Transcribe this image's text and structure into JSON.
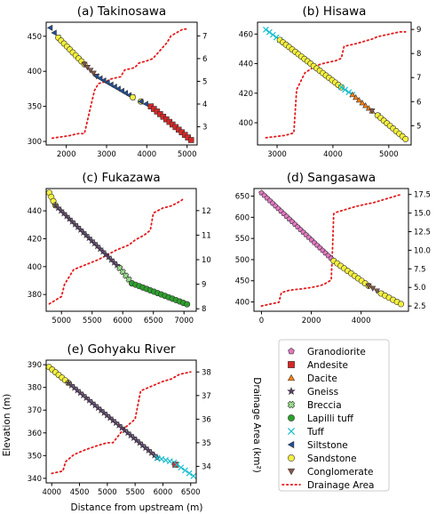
{
  "colors": {
    "Granodiorite": "#e377c2",
    "Andesite": "#d62728",
    "Dacite": "#ff7f0e",
    "Gneiss": "#5e3e6e",
    "Breccia": "#98df8a",
    "Lapilli tuff": "#2ca02c",
    "Tuff": "#17becf",
    "Siltstone": "#1f4e99",
    "Sandstone": "#f5f03c",
    "Conglomerate": "#8c564b",
    "Drainage Area": "#e41a1c"
  },
  "markers": {
    "Granodiorite": "pentagon",
    "Andesite": "square",
    "Dacite": "triangle-up",
    "Gneiss": "star",
    "Breccia": "x-filled",
    "Lapilli tuff": "circle",
    "Tuff": "x-thin",
    "Siltstone": "triangle-left",
    "Sandstone": "circle",
    "Conglomerate": "triangle-down",
    "Drainage Area": "dotted-line"
  },
  "legend": {
    "placement": "bottom-right",
    "items": [
      "Granodiorite",
      "Andesite",
      "Dacite",
      "Gneiss",
      "Breccia",
      "Lapilli tuff",
      "Tuff",
      "Siltstone",
      "Sandstone",
      "Conglomerate",
      "Drainage Area"
    ]
  },
  "axis_labels": {
    "x": "Distance from upstream (m)",
    "y": "Elevation (m)",
    "y2": "Drainage Area (km²)"
  },
  "chart_data": [
    {
      "type": "scatter",
      "title": "(a) Takinosawa",
      "xlim": [
        1500,
        5250
      ],
      "ylim": [
        295,
        470
      ],
      "y2lim": [
        2.2,
        7.6
      ],
      "xticks": [
        2000,
        3000,
        4000,
        5000
      ],
      "yticks": [
        300,
        350,
        400,
        450
      ],
      "y2ticks": [
        3,
        4,
        5,
        6,
        7
      ],
      "segments": [
        {
          "lith": "Siltstone",
          "x": [
            1600,
            1800
          ],
          "y": [
            462,
            448
          ]
        },
        {
          "lith": "Sandstone",
          "x": [
            1800,
            2450
          ],
          "y": [
            448,
            410
          ]
        },
        {
          "lith": "Conglomerate",
          "x": [
            2450,
            2750
          ],
          "y": [
            410,
            393
          ]
        },
        {
          "lith": "Siltstone",
          "x": [
            2750,
            3650
          ],
          "y": [
            393,
            363
          ]
        },
        {
          "lith": "Sandstone",
          "x": [
            3650,
            3850
          ],
          "y": [
            363,
            357
          ]
        },
        {
          "lith": "Siltstone",
          "x": [
            3850,
            4100
          ],
          "y": [
            357,
            350
          ]
        },
        {
          "lith": "Andesite",
          "x": [
            4100,
            5100
          ],
          "y": [
            350,
            302
          ]
        }
      ],
      "drainage": {
        "x": [
          1650,
          2050,
          2300,
          2450,
          2700,
          2800,
          3000,
          3100,
          3350,
          3450,
          3700,
          3800,
          4000,
          4150,
          4250,
          4400,
          4500,
          4600,
          4700,
          4900,
          5000
        ],
        "y2": [
          2.5,
          2.6,
          2.7,
          2.7,
          4.6,
          4.9,
          5.0,
          5.1,
          5.2,
          5.5,
          5.6,
          5.8,
          5.9,
          6.0,
          6.2,
          6.5,
          6.7,
          7.0,
          7.1,
          7.3,
          7.3
        ]
      }
    },
    {
      "type": "scatter",
      "title": "(b) Hisawa",
      "xlim": [
        2650,
        5400
      ],
      "ylim": [
        385,
        468
      ],
      "y2lim": [
        4.2,
        9.3
      ],
      "xticks": [
        3000,
        4000,
        5000
      ],
      "yticks": [
        400,
        420,
        440,
        460
      ],
      "y2ticks": [
        5,
        6,
        7,
        8,
        9
      ],
      "segments": [
        {
          "lith": "Tuff",
          "x": [
            2800,
            3050
          ],
          "y": [
            463,
            456
          ]
        },
        {
          "lith": "Sandstone",
          "x": [
            3050,
            4150
          ],
          "y": [
            456,
            424
          ]
        },
        {
          "lith": "Tuff",
          "x": [
            4150,
            4350
          ],
          "y": [
            424,
            419
          ]
        },
        {
          "lith": "Dacite",
          "x": [
            4350,
            4700
          ],
          "y": [
            419,
            408
          ]
        },
        {
          "lith": "Conglomerate",
          "x": [
            4700,
            4800
          ],
          "y": [
            408,
            405
          ]
        },
        {
          "lith": "Sandstone",
          "x": [
            4800,
            5300
          ],
          "y": [
            405,
            389
          ]
        }
      ],
      "drainage": {
        "x": [
          2800,
          3150,
          3300,
          3350,
          3500,
          3700,
          3850,
          4050,
          4150,
          4200,
          4400,
          4550,
          4700,
          4800,
          5000,
          5200,
          5300
        ],
        "y2": [
          4.5,
          4.6,
          4.7,
          6.5,
          7.2,
          7.5,
          7.6,
          7.7,
          7.8,
          8.3,
          8.4,
          8.5,
          8.6,
          8.7,
          8.8,
          8.9,
          8.9
        ]
      }
    },
    {
      "type": "scatter",
      "title": "(c) Fukazawa",
      "xlim": [
        4750,
        7200
      ],
      "ylim": [
        368,
        456
      ],
      "y2lim": [
        7.9,
        12.9
      ],
      "xticks": [
        5000,
        5500,
        6000,
        6500,
        7000
      ],
      "yticks": [
        380,
        400,
        420,
        440
      ],
      "y2ticks": [
        8,
        9,
        10,
        11,
        12
      ],
      "segments": [
        {
          "lith": "Sandstone",
          "x": [
            4800,
            4900
          ],
          "y": [
            453,
            444
          ]
        },
        {
          "lith": "Gneiss",
          "x": [
            4900,
            5950
          ],
          "y": [
            444,
            399
          ]
        },
        {
          "lith": "Breccia",
          "x": [
            5950,
            6150
          ],
          "y": [
            399,
            388
          ]
        },
        {
          "lith": "Lapilli tuff",
          "x": [
            6150,
            7050
          ],
          "y": [
            388,
            373
          ]
        }
      ],
      "drainage": {
        "x": [
          4800,
          5000,
          5050,
          5200,
          5400,
          5600,
          5750,
          5900,
          6000,
          6100,
          6200,
          6350,
          6450,
          6500,
          6650,
          6800,
          6950,
          7000
        ],
        "y2": [
          8.2,
          8.5,
          9.0,
          9.6,
          9.8,
          10.0,
          10.2,
          10.4,
          10.5,
          10.6,
          10.8,
          11.0,
          11.2,
          11.9,
          12.1,
          12.2,
          12.4,
          12.5
        ]
      }
    },
    {
      "type": "scatter",
      "title": "(d) Sangasawa",
      "xlim": [
        -300,
        5900
      ],
      "ylim": [
        378,
        668
      ],
      "y2lim": [
        1.8,
        18.3
      ],
      "xticks": [
        0,
        2000,
        4000
      ],
      "yticks": [
        400,
        450,
        500,
        550,
        600,
        650
      ],
      "y2ticks": [
        2.5,
        5.0,
        7.5,
        10.0,
        12.5,
        15.0,
        17.5
      ],
      "segments": [
        {
          "lith": "Granodiorite",
          "x": [
            0,
            2900
          ],
          "y": [
            658,
            497
          ]
        },
        {
          "lith": "Sandstone",
          "x": [
            2900,
            4300
          ],
          "y": [
            497,
            438
          ]
        },
        {
          "lith": "Conglomerate",
          "x": [
            4300,
            4800
          ],
          "y": [
            438,
            420
          ]
        },
        {
          "lith": "Sandstone",
          "x": [
            4800,
            5600
          ],
          "y": [
            420,
            395
          ]
        }
      ],
      "drainage": {
        "x": [
          0,
          400,
          700,
          800,
          1100,
          1300,
          1600,
          2000,
          2300,
          2500,
          2700,
          2800,
          2850,
          2900,
          3000,
          3200,
          3500,
          3800,
          4200,
          4500,
          4800,
          5100,
          5400,
          5600
        ],
        "y2": [
          2.5,
          2.8,
          3.0,
          4.3,
          4.6,
          4.7,
          4.8,
          5.0,
          5.2,
          5.4,
          5.8,
          6.0,
          10.0,
          14.9,
          15.1,
          15.3,
          15.6,
          15.9,
          16.2,
          16.4,
          16.7,
          17.0,
          17.3,
          17.5
        ]
      }
    },
    {
      "type": "scatter",
      "title": "(e) Gohyaku River",
      "xlim": [
        3900,
        6600
      ],
      "ylim": [
        338,
        392
      ],
      "y2lim": [
        33.3,
        38.5
      ],
      "xticks": [
        4000,
        4500,
        5000,
        5500,
        6000,
        6500
      ],
      "yticks": [
        340,
        350,
        360,
        370,
        380,
        390
      ],
      "y2ticks": [
        34,
        35,
        36,
        37,
        38
      ],
      "segments": [
        {
          "lith": "Sandstone",
          "x": [
            3950,
            4300
          ],
          "y": [
            389,
            382
          ]
        },
        {
          "lith": "Gneiss",
          "x": [
            4300,
            5900
          ],
          "y": [
            382,
            349
          ]
        },
        {
          "lith": "Tuff",
          "x": [
            5900,
            6200
          ],
          "y": [
            349,
            347
          ]
        },
        {
          "lith": "Andesite",
          "x": [
            6200,
            6250
          ],
          "y": [
            346,
            346
          ]
        },
        {
          "lith": "Tuff",
          "x": [
            6250,
            6550
          ],
          "y": [
            346,
            341
          ]
        }
      ],
      "drainage": {
        "x": [
          4000,
          4200,
          4250,
          4400,
          4600,
          4850,
          5000,
          5100,
          5300,
          5400,
          5500,
          5600,
          5700,
          5800,
          6000,
          6150,
          6300,
          6500
        ],
        "y2": [
          33.7,
          33.8,
          34.2,
          34.5,
          34.7,
          34.9,
          35.0,
          35.0,
          35.6,
          35.8,
          36.0,
          37.2,
          37.3,
          37.4,
          37.6,
          37.7,
          37.9,
          38.0
        ]
      }
    }
  ]
}
